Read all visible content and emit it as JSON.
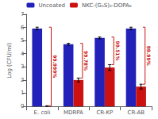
{
  "chart_data": {
    "type": "bar",
    "categories": [
      "E. coli",
      "MDRPA",
      "CR-KP",
      "CR-AB"
    ],
    "series": [
      {
        "name": "Uncoated",
        "color": "#2222bb",
        "values": [
          5.92,
          4.72,
          5.2,
          5.92
        ],
        "errors": [
          0.1,
          0.07,
          0.07,
          0.1
        ]
      },
      {
        "name": "NKC-(G₄S)₂-DOPA₆",
        "color": "#cc1111",
        "values": [
          0.02,
          2.0,
          2.95,
          1.5
        ],
        "errors": [
          0.02,
          0.15,
          0.22,
          0.18
        ]
      }
    ],
    "annotations": [
      "99.999%",
      "99.78%",
      "99.51%",
      "99.99%"
    ],
    "ylabel": "Log (CFU/ml)",
    "ylim": [
      0,
      7
    ],
    "yticks": [
      0,
      1,
      2,
      3,
      4,
      5,
      6,
      7
    ],
    "grid": false,
    "legend": "top"
  }
}
